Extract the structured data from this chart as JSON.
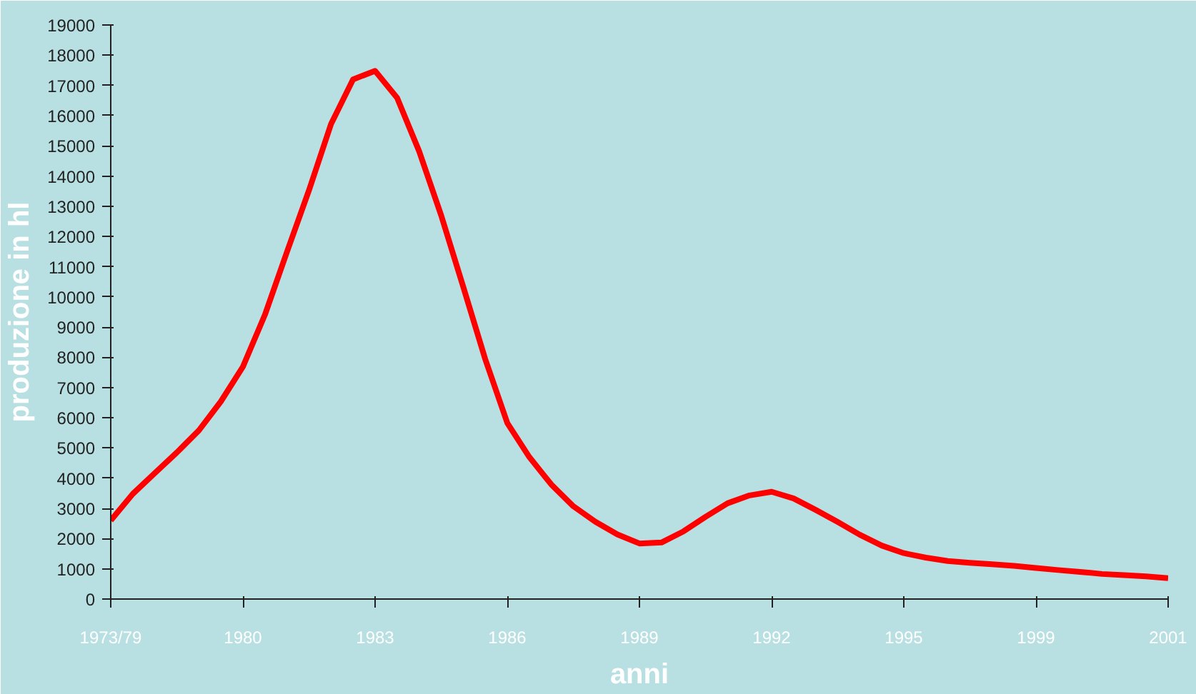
{
  "chart_data": {
    "type": "line",
    "xlabel": "anni",
    "ylabel": "produzione in hl",
    "categories": [
      "1973/79",
      null,
      null,
      null,
      null,
      null,
      "1980",
      null,
      null,
      null,
      null,
      null,
      "1983",
      null,
      null,
      null,
      null,
      null,
      "1986",
      null,
      null,
      null,
      null,
      null,
      "1989",
      null,
      null,
      null,
      null,
      null,
      "1992",
      null,
      null,
      null,
      null,
      null,
      "1995",
      null,
      null,
      null,
      null,
      null,
      "1999",
      null,
      null,
      null,
      null,
      null,
      "2001"
    ],
    "series": [
      {
        "color": "#ff0000",
        "values": [
          2600,
          3480,
          4170,
          4850,
          5580,
          6540,
          7690,
          9410,
          11490,
          13530,
          15720,
          17200,
          17480,
          16590,
          14820,
          12700,
          10340,
          7940,
          5830,
          4700,
          3790,
          3070,
          2560,
          2140,
          1840,
          1870,
          2240,
          2720,
          3170,
          3430,
          3550,
          3330,
          2950,
          2550,
          2130,
          1770,
          1520,
          1370,
          1260,
          1200,
          1150,
          1100,
          1030,
          960,
          900,
          830,
          790,
          750,
          690
        ]
      }
    ],
    "ylim": [
      0,
      19000
    ],
    "yticks": [
      0,
      1000,
      2000,
      3000,
      4000,
      5000,
      6000,
      7000,
      8000,
      9000,
      10000,
      11000,
      12000,
      13000,
      14000,
      15000,
      16000,
      17000,
      18000,
      19000
    ],
    "grid": false,
    "marker": "none",
    "line_style": "solid"
  }
}
